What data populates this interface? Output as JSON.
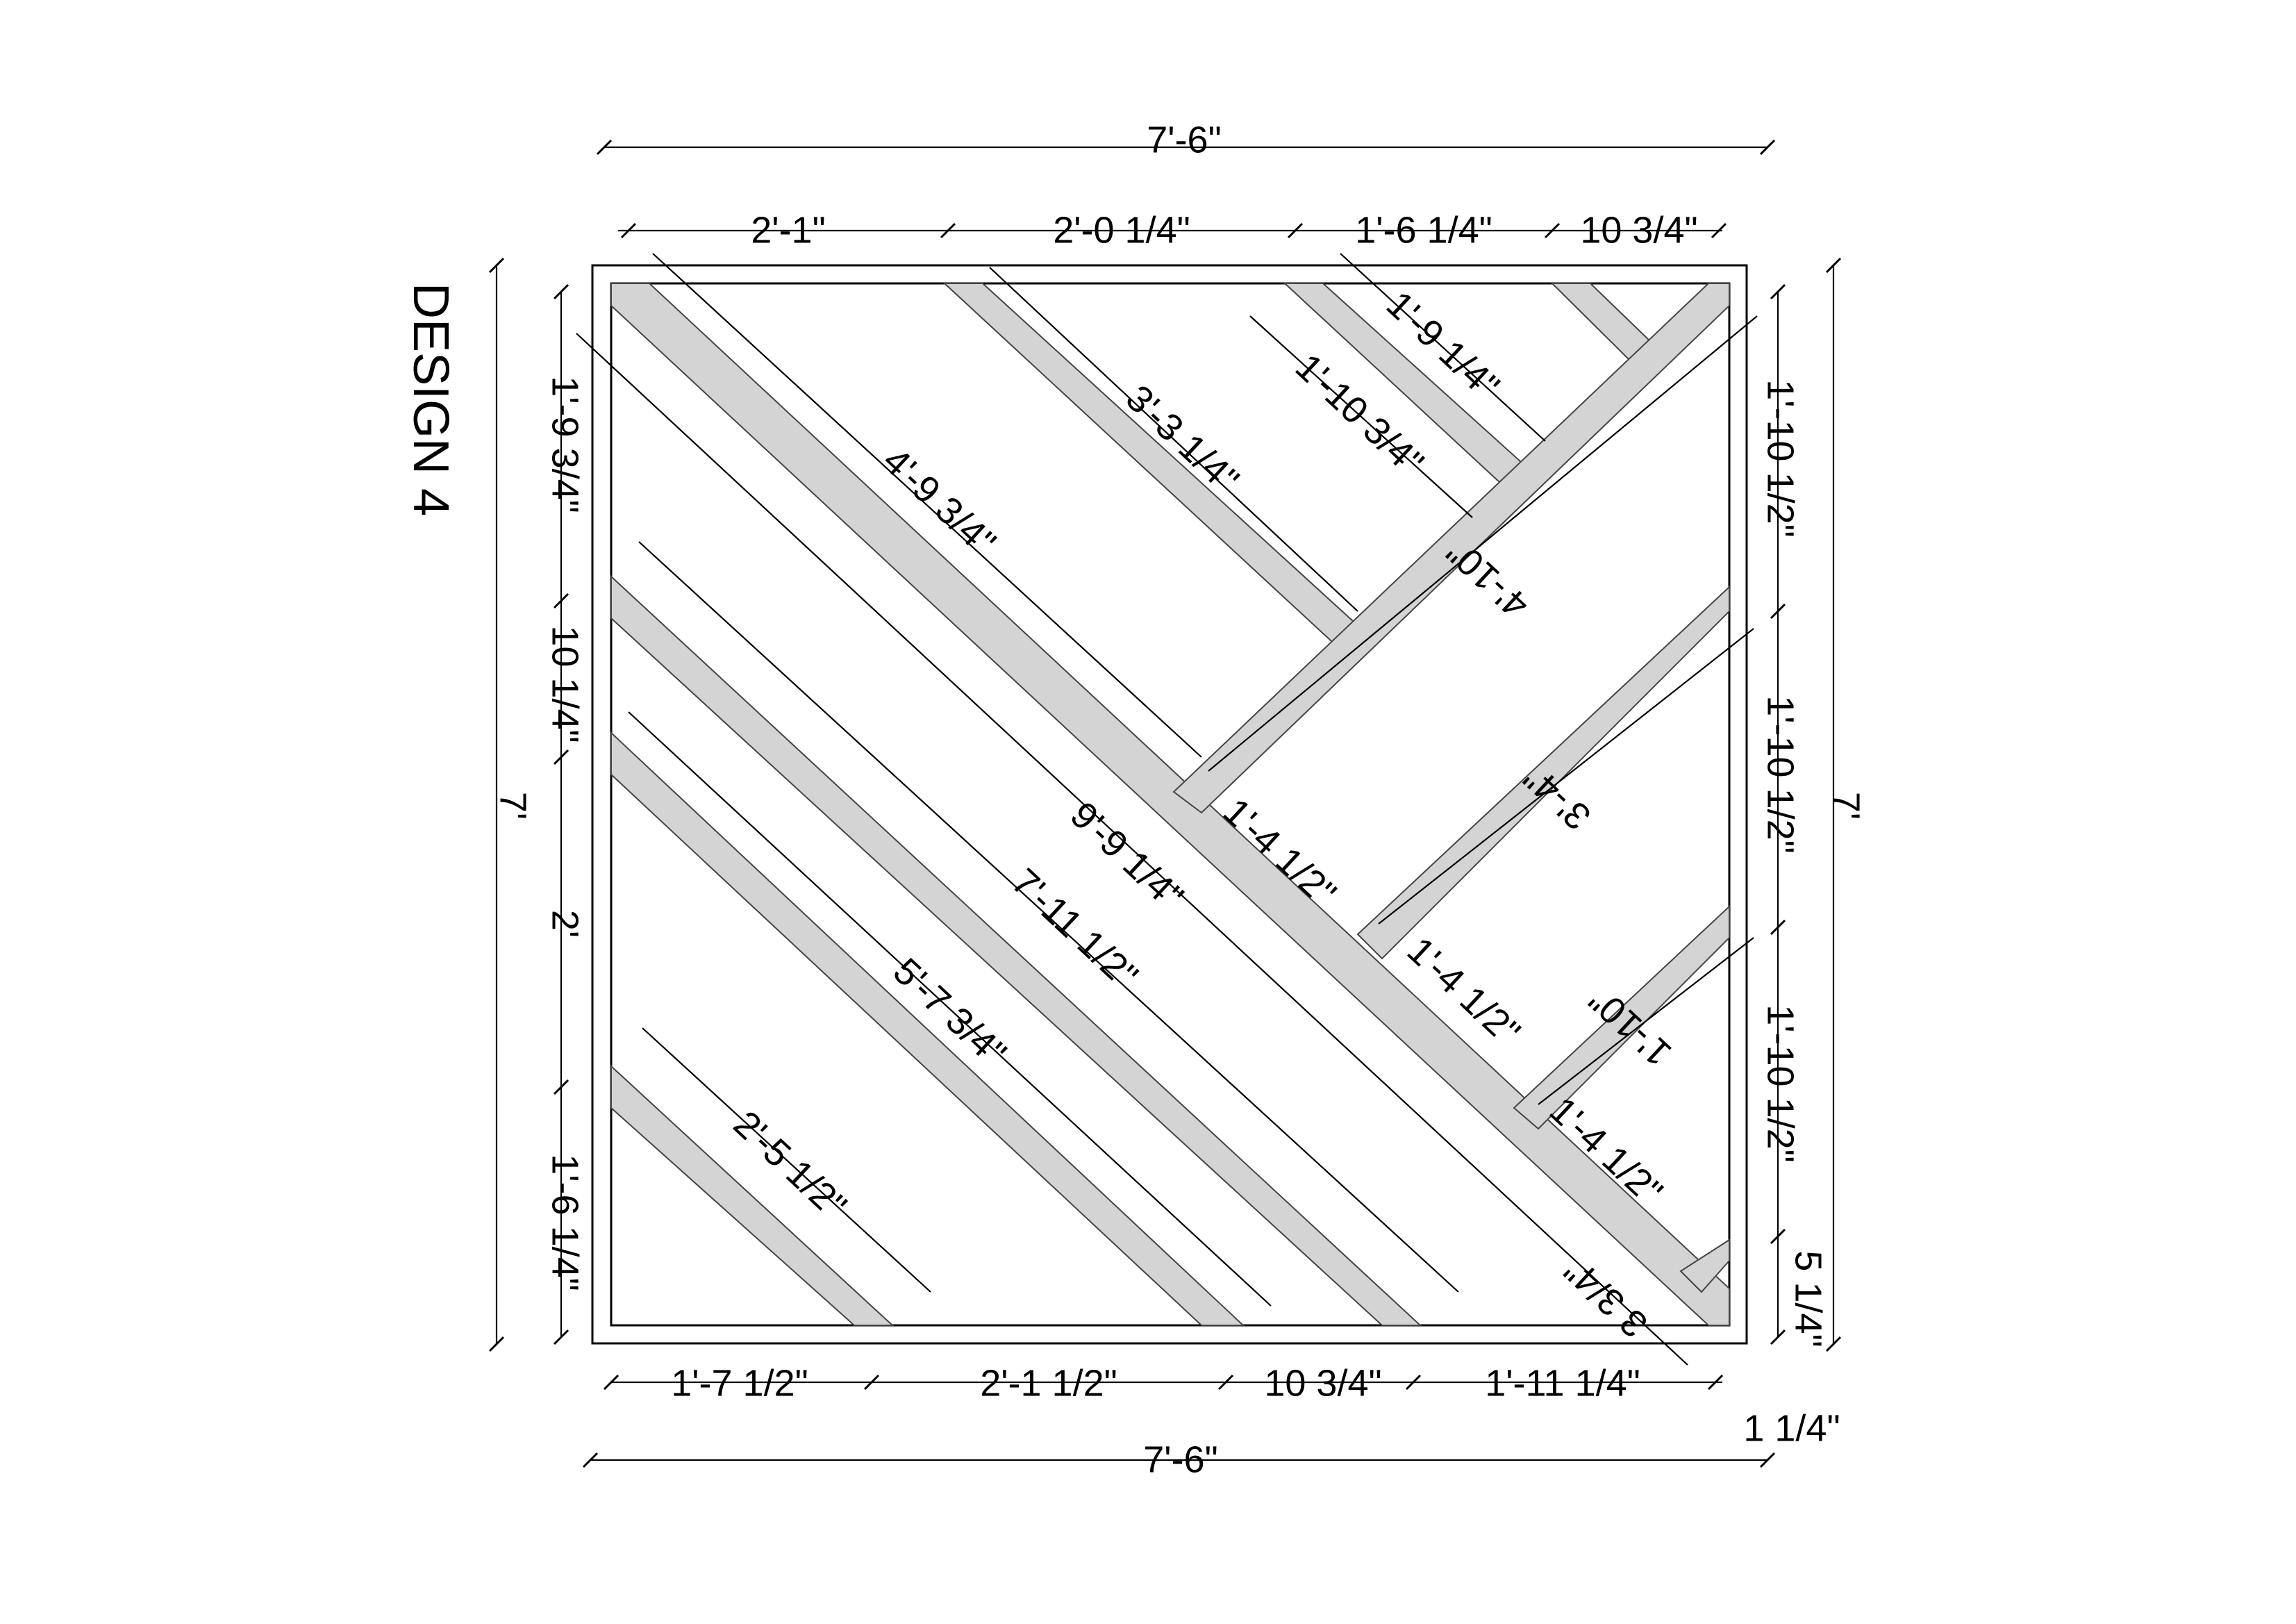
{
  "title": "DESIGN 4",
  "overall": {
    "width_top": "7'-6\"",
    "width_bottom": "7'-6\"",
    "height_left": "7'",
    "height_right": "7'"
  },
  "top_segments": [
    "2'-1\"",
    "2'-0 1/4\"",
    "1'-6 1/4\"",
    "10 3/4\""
  ],
  "bottom_segments": [
    "1'-7 1/2\"",
    "2'-1 1/2\"",
    "10 3/4\"",
    "1'-11 1/4\"",
    "1 1/4\""
  ],
  "left_segments": [
    "1'-9 3/4\"",
    "10 1/4\"",
    "2'",
    "1'-6 1/4\""
  ],
  "right_segments": [
    "1'-10 1/2\"",
    "1'-10 1/2\"",
    "1'-10 1/2\"",
    "5 1/4\""
  ],
  "strip_lengths": {
    "main_diagonal": "9'-9 1/4\"",
    "upper_1": "4'-9 3/4\"",
    "upper_2": "3'-3 1/4\"",
    "upper_3": "1'-10 3/4\"",
    "upper_4": "1'-9 1/4\"",
    "cross_long": "4'-10\"",
    "lower_1": "7'-11 1/2\"",
    "lower_2": "5'-7 3/4\"",
    "lower_3": "2'-5 1/2\"",
    "right_1": "3'-4\"",
    "right_2": "1'-10\"",
    "spacing_1": "1'-4 1/2\"",
    "spacing_2": "1'-4 1/2\"",
    "spacing_3": "1'-4 1/2\"",
    "corner": "3 3/4\""
  }
}
